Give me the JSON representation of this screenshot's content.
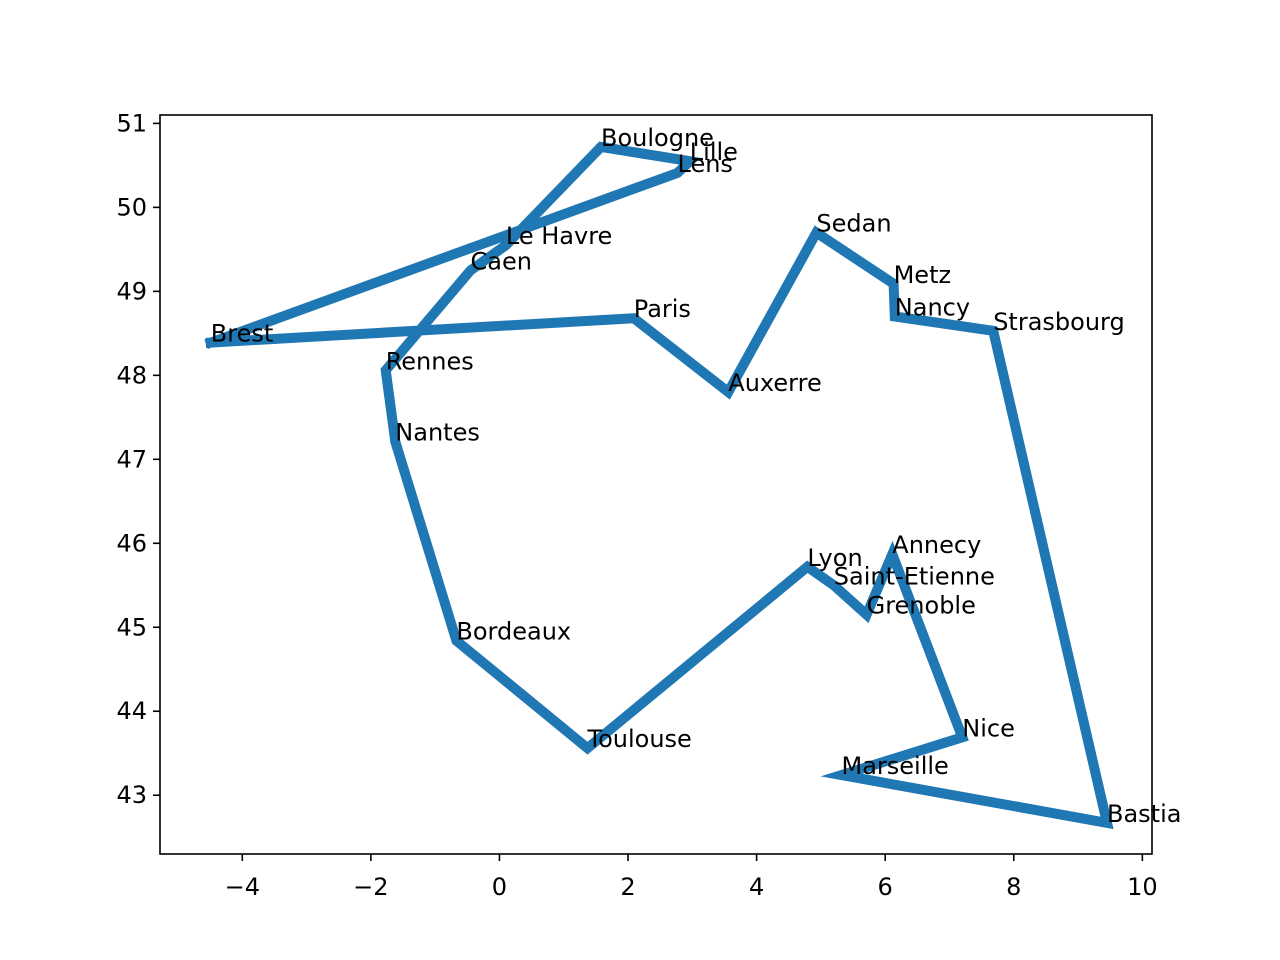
{
  "chart_data": {
    "type": "line",
    "title": "",
    "xlabel": "",
    "ylabel": "",
    "xlim": [
      -5.28,
      10.15
    ],
    "ylim": [
      42.3,
      51.1
    ],
    "grid": false,
    "line_color": "#1f77b4",
    "xticks": [
      {
        "value": -4,
        "label": "−4"
      },
      {
        "value": -2,
        "label": "−2"
      },
      {
        "value": 0,
        "label": "0"
      },
      {
        "value": 2,
        "label": "2"
      },
      {
        "value": 4,
        "label": "4"
      },
      {
        "value": 6,
        "label": "6"
      },
      {
        "value": 8,
        "label": "8"
      },
      {
        "value": 10,
        "label": "10"
      }
    ],
    "yticks": [
      {
        "value": 43,
        "label": "43"
      },
      {
        "value": 44,
        "label": "44"
      },
      {
        "value": 45,
        "label": "45"
      },
      {
        "value": 46,
        "label": "46"
      },
      {
        "value": 47,
        "label": "47"
      },
      {
        "value": 48,
        "label": "48"
      },
      {
        "value": 49,
        "label": "49"
      },
      {
        "value": 50,
        "label": "50"
      },
      {
        "value": 51,
        "label": "51"
      }
    ],
    "points": [
      {
        "name": "Brest",
        "x": -4.49,
        "y": 48.39
      },
      {
        "name": "Paris",
        "x": 2.09,
        "y": 48.68
      },
      {
        "name": "Auxerre",
        "x": 3.56,
        "y": 47.8
      },
      {
        "name": "Sedan",
        "x": 4.93,
        "y": 49.7
      },
      {
        "name": "Metz",
        "x": 6.13,
        "y": 49.09
      },
      {
        "name": "Nancy",
        "x": 6.15,
        "y": 48.7
      },
      {
        "name": "Strasbourg",
        "x": 7.68,
        "y": 48.53
      },
      {
        "name": "Bastia",
        "x": 9.45,
        "y": 42.67
      },
      {
        "name": "Marseille",
        "x": 5.32,
        "y": 43.24
      },
      {
        "name": "Nice",
        "x": 7.2,
        "y": 43.69
      },
      {
        "name": "Annecy",
        "x": 6.11,
        "y": 45.87
      },
      {
        "name": "Grenoble",
        "x": 5.71,
        "y": 45.15
      },
      {
        "name": "Saint-Etienne",
        "x": 5.2,
        "y": 45.5
      },
      {
        "name": "Lyon",
        "x": 4.79,
        "y": 45.72
      },
      {
        "name": "Toulouse",
        "x": 1.37,
        "y": 43.56
      },
      {
        "name": "Bordeaux",
        "x": -0.67,
        "y": 44.84
      },
      {
        "name": "Nantes",
        "x": -1.62,
        "y": 47.21
      },
      {
        "name": "Rennes",
        "x": -1.77,
        "y": 48.06
      },
      {
        "name": "Caen",
        "x": -0.45,
        "y": 49.25
      },
      {
        "name": "Le Havre",
        "x": 0.1,
        "y": 49.55
      },
      {
        "name": "Boulogne",
        "x": 1.58,
        "y": 50.72
      },
      {
        "name": "Lille",
        "x": 2.96,
        "y": 50.55
      },
      {
        "name": "Lens",
        "x": 2.77,
        "y": 50.41
      },
      {
        "name": "Brest",
        "x": -4.49,
        "y": 48.39
      }
    ]
  }
}
